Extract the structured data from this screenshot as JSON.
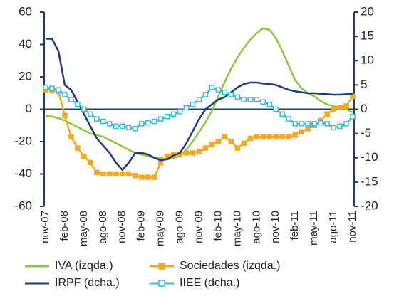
{
  "chart_data": {
    "type": "line",
    "categories": [
      "nov-07",
      null,
      null,
      "feb-08",
      null,
      null,
      "may-08",
      null,
      null,
      "ago-08",
      null,
      null,
      "nov-08",
      null,
      null,
      "feb-09",
      null,
      null,
      "may-09",
      null,
      null,
      "ago-09",
      null,
      null,
      "nov-09",
      null,
      null,
      "feb-10",
      null,
      null,
      "may-10",
      null,
      null,
      "ago-10",
      null,
      null,
      "nov-10",
      null,
      null,
      "feb-11",
      null,
      null,
      "may-11",
      null,
      null,
      "ago-11",
      null,
      null,
      "nov-11"
    ],
    "ylim": [
      -60,
      60
    ],
    "yticks": [
      -60,
      -40,
      -20,
      0,
      20,
      40,
      60
    ],
    "y2lim": [
      -20,
      20
    ],
    "y2ticks": [
      -20,
      -15,
      -10,
      -5,
      0,
      5,
      10,
      15,
      20
    ],
    "series": [
      {
        "name": "IVA (izqda.)",
        "color": "#8dc63f",
        "marker": false,
        "values": [
          -4,
          -4.5,
          -5.5,
          -7,
          -9,
          -11,
          -13,
          -15,
          -16,
          -17,
          -19,
          -21,
          -23,
          -25,
          -27,
          -28,
          -29,
          -30,
          -30,
          -31,
          -30,
          -29,
          -25,
          -20,
          -14,
          -8,
          -1,
          8,
          17,
          25,
          32,
          38,
          43,
          47,
          50,
          49,
          44,
          36,
          27,
          18,
          13,
          10,
          8,
          5,
          3,
          2,
          1,
          0,
          -2
        ]
      },
      {
        "name": "Sociedades (izqda.)",
        "color": "#f7a823",
        "marker": true,
        "values": [
          12,
          12,
          11,
          -4,
          -17,
          -24,
          -29,
          -33,
          -39,
          -40,
          -40,
          -40,
          -40,
          -40,
          -41,
          -42,
          -42,
          -42,
          -33,
          -29,
          -28,
          -28,
          -27,
          -27,
          -26,
          -24,
          -22,
          -20,
          -17,
          -20,
          -24,
          -21,
          -18,
          -17,
          -17,
          -17,
          -17,
          -17,
          -17,
          -16,
          -14,
          -12,
          -10,
          -7,
          -3,
          0,
          1,
          2,
          8
        ]
      },
      {
        "name": "IRPF (dcha.)",
        "color": "#1f3a7a",
        "marker": false,
        "axis": "y2",
        "values": [
          14.5,
          14.5,
          12,
          5,
          4,
          1.5,
          -1,
          -3.5,
          -6,
          -7.5,
          -9,
          -11,
          -12.5,
          -11,
          -9,
          -9,
          -9.3,
          -10,
          -10.5,
          -10.3,
          -9.5,
          -9,
          -7,
          -4.5,
          -2,
          0,
          1,
          2,
          2.5,
          3.5,
          4.5,
          5.2,
          5.5,
          5.5,
          5.3,
          5.2,
          5,
          4.5,
          4,
          3.7,
          3.5,
          3.3,
          3.3,
          3.2,
          3.1,
          3,
          3,
          3.1,
          3.2
        ]
      },
      {
        "name": "IIEE (dcha.)",
        "color": "#3fb6d4",
        "marker": true,
        "axis": "y2",
        "values": [
          4.5,
          4.3,
          4,
          3,
          2,
          1,
          0,
          -1,
          -2,
          -2.5,
          -3,
          -3.5,
          -3.5,
          -3.8,
          -4,
          -3,
          -2.8,
          -2.5,
          -2,
          -1.5,
          -1,
          -0.5,
          0.3,
          1,
          2,
          3,
          4.5,
          4,
          3.5,
          3,
          2.5,
          2,
          2,
          2,
          1.5,
          1,
          0,
          -1,
          -2,
          -3,
          -3,
          -3,
          -3,
          -2.8,
          -3,
          -3.8,
          -3.5,
          -3,
          -1.5
        ]
      }
    ]
  }
}
